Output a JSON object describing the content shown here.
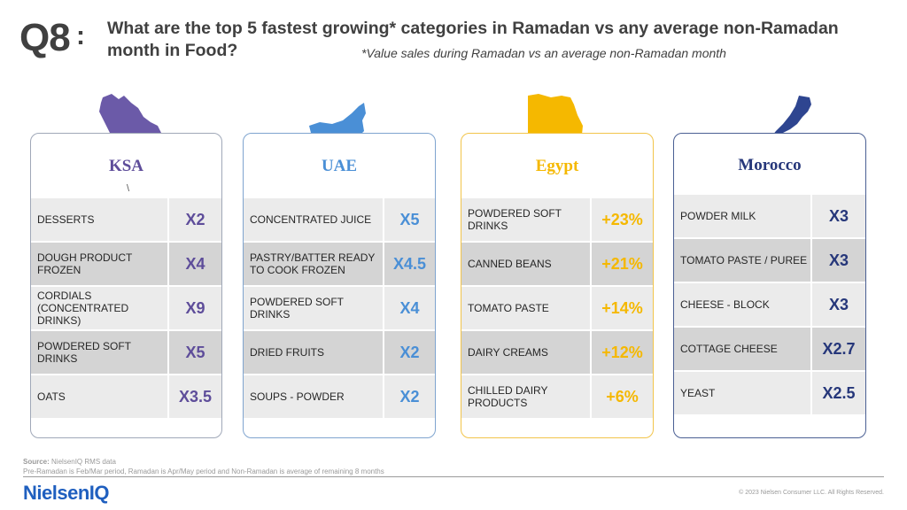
{
  "header": {
    "question": "Q8",
    "colon": ":",
    "title": "What are the top 5 fastest growing* categories in Ramadan vs any average non-Ramadan month in Food?",
    "subtitle": "*Value sales during Ramadan vs an average non-Ramadan month"
  },
  "colors": {
    "ksa": "#5e4d9a",
    "uae": "#4a8fd6",
    "egypt": "#f5b800",
    "morocco": "#26377a"
  },
  "cards": {
    "ksa": {
      "country": "KSA",
      "stray_mark": "\\",
      "rows": [
        {
          "label": "DESSERTS",
          "value": "X2"
        },
        {
          "label": "DOUGH PRODUCT FROZEN",
          "value": "X4"
        },
        {
          "label": "CORDIALS (CONCENTRATED DRINKS)",
          "value": "X9"
        },
        {
          "label": "POWDERED SOFT DRINKS",
          "value": "X5"
        },
        {
          "label": "OATS",
          "value": "X3.5"
        }
      ]
    },
    "uae": {
      "country": "UAE",
      "rows": [
        {
          "label": "CONCENTRATED JUICE",
          "value": "X5"
        },
        {
          "label": "PASTRY/BATTER READY TO COOK FROZEN",
          "value": "X4.5"
        },
        {
          "label": "POWDERED SOFT DRINKS",
          "value": "X4"
        },
        {
          "label": "DRIED FRUITS",
          "value": "X2"
        },
        {
          "label": "SOUPS - POWDER",
          "value": "X2"
        }
      ]
    },
    "egypt": {
      "country": "Egypt",
      "rows": [
        {
          "label": "POWDERED SOFT DRINKS",
          "value": "+23%"
        },
        {
          "label": "CANNED BEANS",
          "value": "+21%"
        },
        {
          "label": "TOMATO PASTE",
          "value": "+14%"
        },
        {
          "label": "DAIRY CREAMS",
          "value": "+12%"
        },
        {
          "label": "CHILLED DAIRY PRODUCTS",
          "value": "+6%"
        }
      ]
    },
    "morocco": {
      "country": "Morocco",
      "rows": [
        {
          "label": "POWDER MILK",
          "value": "X3"
        },
        {
          "label": "TOMATO PASTE / PUREE",
          "value": "X3"
        },
        {
          "label": "CHEESE - BLOCK",
          "value": "X3"
        },
        {
          "label": "COTTAGE CHEESE",
          "value": "X2.7"
        },
        {
          "label": "YEAST",
          "value": "X2.5"
        }
      ]
    }
  },
  "icons": {
    "ksa": "saudi-arabia-map-icon",
    "uae": "uae-map-icon",
    "egypt": "egypt-map-icon",
    "morocco": "morocco-map-icon"
  },
  "footer": {
    "source_label": "Source:",
    "source": "NielsenIQ RMS data",
    "note": "Pre-Ramadan is Feb/Mar period, Ramadan is Apr/May period and Non-Ramadan is average of remaining 8 months",
    "logo": "NielsenIQ",
    "copyright": "© 2023 Nielsen Consumer LLC. All Rights Reserved."
  }
}
